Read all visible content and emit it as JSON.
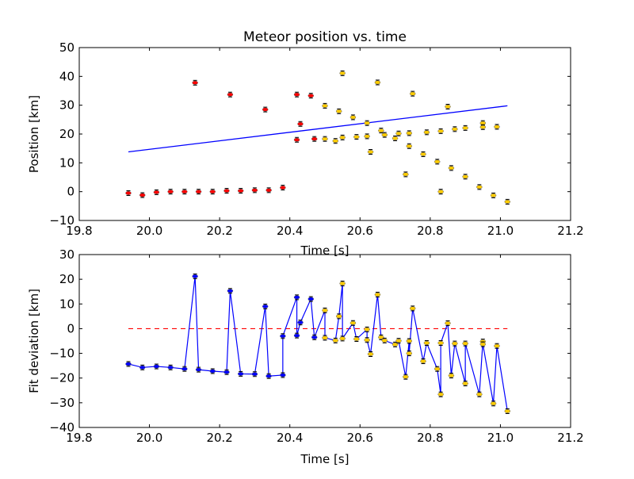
{
  "chart_data": [
    {
      "type": "scatter",
      "title": "Meteor position vs. time",
      "xlabel": "Time [s]",
      "ylabel": "Position [km]",
      "xlim": [
        19.8,
        21.2
      ],
      "ylim": [
        -10,
        50
      ],
      "xticks": [
        "19.8",
        "20.0",
        "20.2",
        "20.4",
        "20.6",
        "20.8",
        "21.0",
        "21.2"
      ],
      "yticks": [
        "−10",
        "0",
        "10",
        "20",
        "30",
        "40",
        "50"
      ],
      "grid": false,
      "colors": {
        "red_series": "#ff0000",
        "gold_series": "#ffcc00",
        "fit_line": "#0000ff"
      },
      "series": [
        {
          "x": [
            19.94,
            19.98,
            20.02,
            20.06,
            20.1,
            20.13,
            20.14,
            20.18,
            20.22,
            20.23,
            20.26,
            20.3,
            20.33,
            20.34,
            20.38,
            20.42,
            20.42,
            20.43,
            20.46,
            20.47
          ],
          "y": [
            -0.5,
            -1.2,
            -0.2,
            0.0,
            0.0,
            37.8,
            0.0,
            0.0,
            0.3,
            33.7,
            0.3,
            0.5,
            28.5,
            0.5,
            1.4,
            33.7,
            18.0,
            23.5,
            33.3,
            18.3
          ]
        },
        {
          "x": [
            20.5,
            20.5,
            20.53,
            20.54,
            20.55,
            20.55,
            20.58,
            20.59,
            20.62,
            20.62,
            20.63,
            20.65,
            20.66,
            20.67,
            20.7,
            20.71,
            20.73,
            20.74,
            20.74,
            20.75,
            20.78,
            20.79,
            20.82,
            20.83,
            20.83,
            20.85,
            20.86,
            20.87,
            20.9,
            20.9,
            20.94,
            20.95,
            20.95,
            20.98,
            20.99,
            21.02
          ],
          "y": [
            29.8,
            18.3,
            17.6,
            27.9,
            41.1,
            18.8,
            25.8,
            19.0,
            23.8,
            19.2,
            13.8,
            37.9,
            21.2,
            19.7,
            18.5,
            20.2,
            6.0,
            15.8,
            20.3,
            34.0,
            13.0,
            20.6,
            10.4,
            0.0,
            21.0,
            29.5,
            8.2,
            21.7,
            5.2,
            22.1,
            1.6,
            23.8,
            22.4,
            -1.3,
            22.5,
            -3.5
          ]
        }
      ],
      "fit_line": {
        "x": [
          19.94,
          21.02
        ],
        "y": [
          13.8,
          29.8
        ]
      }
    },
    {
      "type": "line",
      "xlabel": "Time [s]",
      "ylabel": "Fit deviation [km]",
      "xlim": [
        19.8,
        21.2
      ],
      "ylim": [
        -40,
        30
      ],
      "xticks": [
        "19.8",
        "20.0",
        "20.2",
        "20.4",
        "20.6",
        "20.8",
        "21.0",
        "21.2"
      ],
      "yticks": [
        "−40",
        "−30",
        "−20",
        "−10",
        "0",
        "10",
        "20",
        "30"
      ],
      "grid": false,
      "colors": {
        "blue_series": "#0000ff",
        "gold_series": "#ffcc00",
        "zero_line": "#ff0000"
      },
      "zero_line": {
        "x": [
          19.94,
          21.02
        ],
        "y": [
          0,
          0
        ]
      },
      "series": [
        {
          "x": [
            19.94,
            19.98,
            20.02,
            20.06,
            20.1,
            20.13,
            20.14,
            20.18,
            20.22,
            20.23,
            20.26,
            20.3,
            20.33,
            20.34,
            20.38,
            20.38,
            20.42,
            20.42,
            20.43,
            20.46,
            20.47
          ],
          "y": [
            -14.3,
            -15.7,
            -15.3,
            -15.7,
            -16.3,
            21.2,
            -16.6,
            -17.2,
            -17.6,
            15.3,
            -18.3,
            -18.4,
            9.0,
            -19.2,
            -18.8,
            -3.0,
            12.7,
            -2.8,
            2.5,
            12.0,
            -3.5
          ]
        },
        {
          "x": [
            20.5,
            20.5,
            20.53,
            20.54,
            20.55,
            20.55,
            20.58,
            20.59,
            20.62,
            20.62,
            20.63,
            20.65,
            20.66,
            20.67,
            20.7,
            20.71,
            20.73,
            20.74,
            20.74,
            20.75,
            20.78,
            20.79,
            20.82,
            20.83,
            20.83,
            20.85,
            20.86,
            20.87,
            20.9,
            20.9,
            20.94,
            20.95,
            20.95,
            20.98,
            20.99,
            21.02
          ],
          "y": [
            7.4,
            -3.7,
            -4.8,
            5.0,
            18.3,
            -4.0,
            2.3,
            -4.2,
            -0.3,
            -4.6,
            -10.3,
            13.8,
            -3.5,
            -4.8,
            -6.4,
            -4.9,
            -19.5,
            -5.0,
            -10.0,
            8.2,
            -13.2,
            -5.8,
            -16.3,
            -26.6,
            -5.8,
            2.2,
            -19.0,
            -6.0,
            -22.2,
            -6.0,
            -26.6,
            -5.2,
            -6.3,
            -30.3,
            -7.0,
            -33.4
          ]
        }
      ]
    }
  ]
}
